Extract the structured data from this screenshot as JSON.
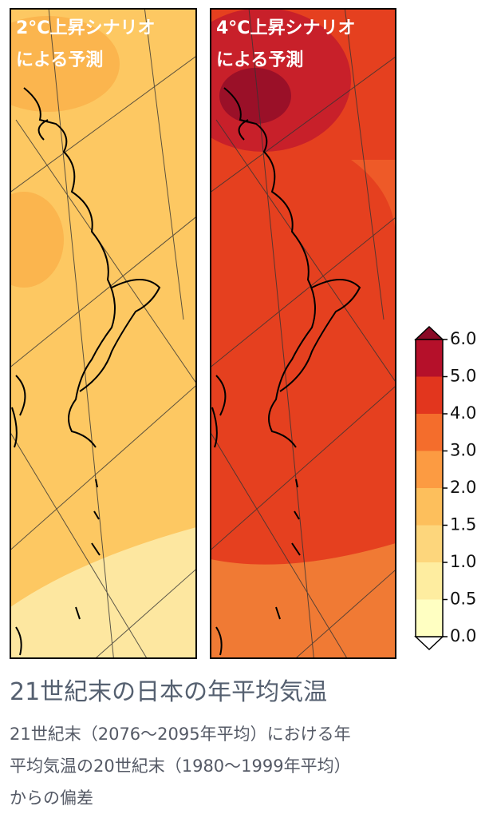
{
  "panels": [
    {
      "title_lines": [
        "2°C上昇シナリオ",
        "による予測"
      ]
    },
    {
      "title_lines": [
        "4°C上昇シナリオ",
        "による予測"
      ]
    }
  ],
  "colorbar": {
    "ticks": [
      {
        "value": 0,
        "label": "0.0"
      },
      {
        "value": 0.5,
        "label": "0.5"
      },
      {
        "value": 1,
        "label": "1.0"
      },
      {
        "value": 1.5,
        "label": "1.5"
      },
      {
        "value": 2,
        "label": "2.0"
      },
      {
        "value": 3,
        "label": "3.0"
      },
      {
        "value": 4,
        "label": "4.0"
      },
      {
        "value": 5,
        "label": "5.0"
      },
      {
        "value": 6,
        "label": "6.0"
      }
    ],
    "colors": [
      "#ffffc2",
      "#feeda0",
      "#fdd67c",
      "#fdbf5c",
      "#fc9b42",
      "#f46d2c",
      "#e2361e",
      "#b5102a"
    ],
    "under_color": "#ffffff",
    "over_color": "#8a0a26"
  },
  "caption": {
    "title": "21世紀末の日本の年平均気温",
    "lines": [
      "21世紀末（2076～2095年平均）における年",
      "平均気温の20世紀末（1980～1999年平均）",
      "からの偏差"
    ]
  }
}
